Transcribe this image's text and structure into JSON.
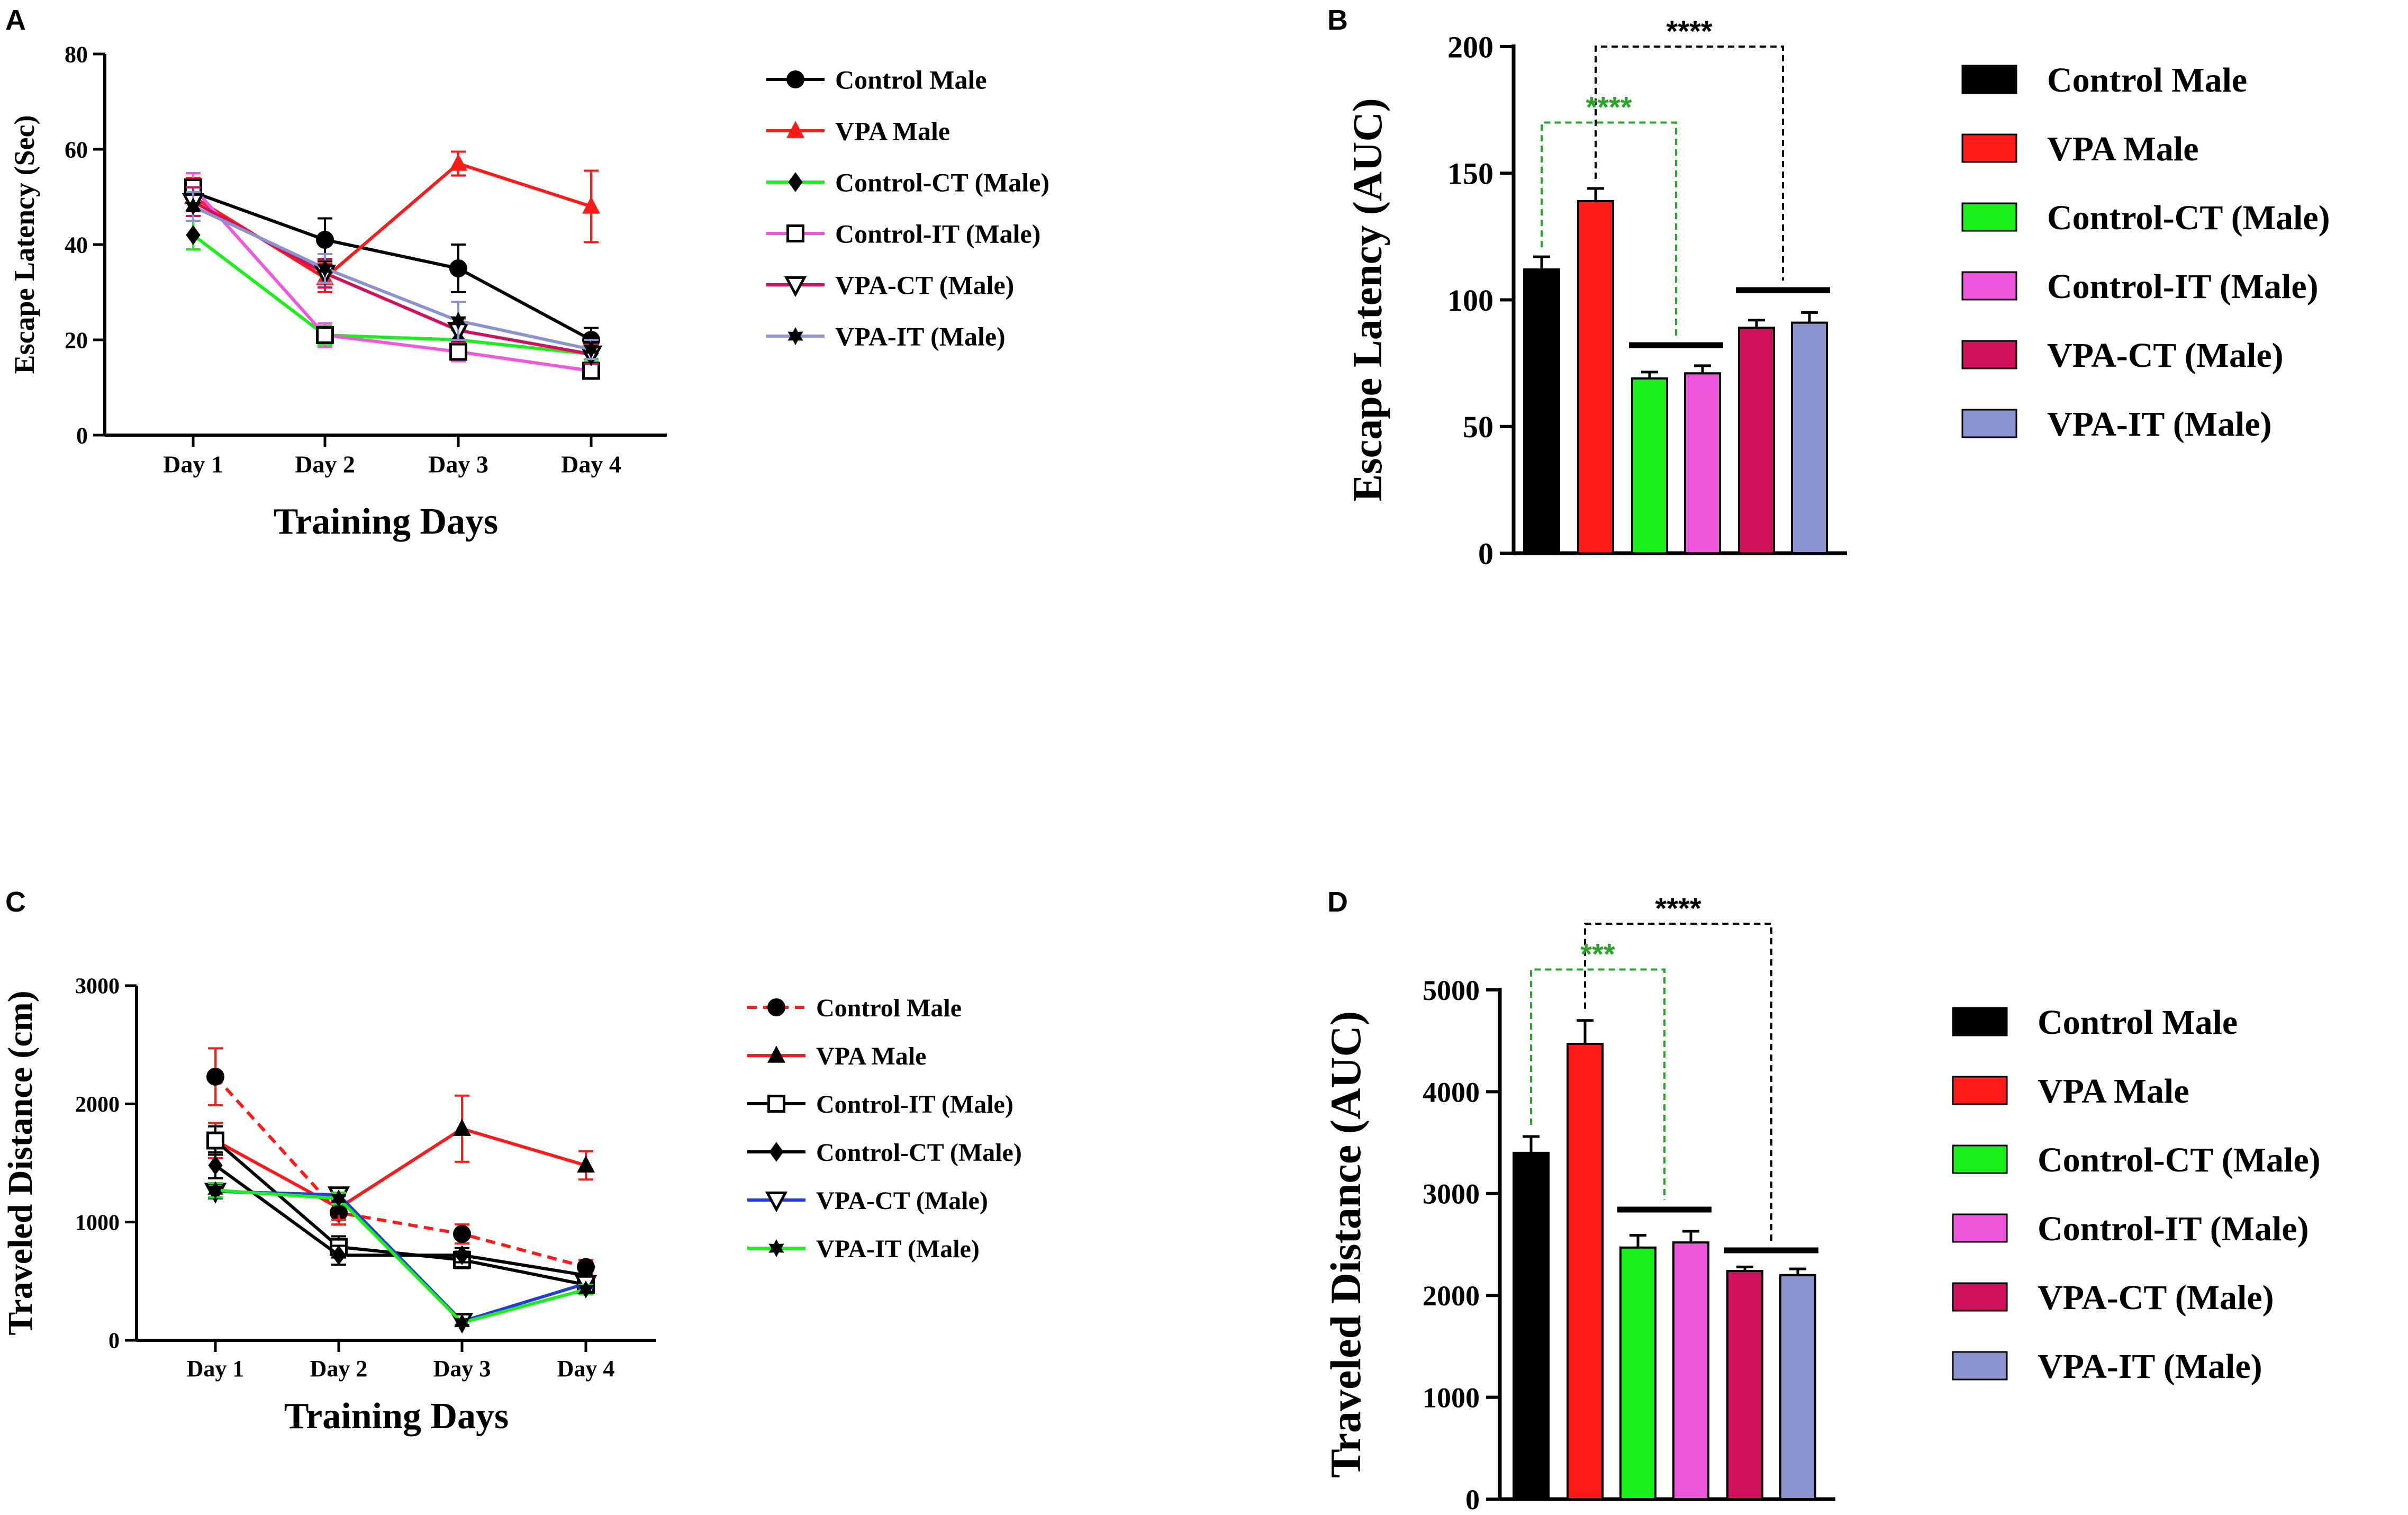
{
  "colors": {
    "black": "#000000",
    "red": "#ff1a1a",
    "green": "#19f019",
    "pink": "#f057dd",
    "crimson": "#d0115e",
    "lavender": "#8b93cf",
    "blue": "#1f3fd6",
    "sig_green": "#2aa52a"
  },
  "chart_data": [
    {
      "panel": "A",
      "type": "line",
      "xlabel": "Training Days",
      "ylabel": "Escape Latency (Sec)",
      "categories": [
        "Day 1",
        "Day 2",
        "Day 3",
        "Day 4"
      ],
      "ylim": [
        0,
        80
      ],
      "yticks": [
        0,
        20,
        40,
        60,
        80
      ],
      "series": [
        {
          "name": "Control Male",
          "color": "black",
          "marker": "circle",
          "values": [
            51,
            41,
            35,
            20
          ],
          "errors": [
            4,
            4.5,
            5,
            2.5
          ]
        },
        {
          "name": "VPA Male",
          "color": "red",
          "marker": "triangle",
          "values": [
            50,
            33,
            57,
            48
          ],
          "errors": [
            4,
            3,
            2.5,
            7.5
          ]
        },
        {
          "name": "Control-CT (Male)",
          "color": "green",
          "marker": "diamond",
          "values": [
            42,
            21,
            20,
            17
          ],
          "errors": [
            3,
            2,
            2,
            1.5
          ]
        },
        {
          "name": "Control-IT (Male)",
          "color": "pink",
          "marker": "square-open",
          "values": [
            52,
            21,
            17.5,
            13.5
          ],
          "errors": [
            3,
            2.5,
            2,
            1.5
          ]
        },
        {
          "name": "VPA-CT (Male)",
          "color": "crimson",
          "marker": "triangle-down-open",
          "values": [
            49,
            34,
            22,
            17
          ],
          "errors": [
            3,
            3,
            2.5,
            2
          ]
        },
        {
          "name": "VPA-IT (Male)",
          "color": "lavender",
          "marker": "star",
          "values": [
            48,
            35,
            24,
            18
          ],
          "errors": [
            3,
            3,
            4,
            2
          ]
        }
      ]
    },
    {
      "panel": "B",
      "type": "bar",
      "ylabel": "Escape Latency (AUC)",
      "categories": [
        "Control Male",
        "VPA Male",
        "Control-CT (Male)",
        "Control-IT (Male)",
        "VPA-CT (Male)",
        "VPA-IT (Male)"
      ],
      "colors": [
        "black",
        "red",
        "green",
        "pink",
        "crimson",
        "lavender"
      ],
      "values": [
        112,
        139,
        69,
        71,
        89,
        91
      ],
      "errors": [
        5,
        5,
        2.5,
        3,
        3,
        4
      ],
      "ylim": [
        0,
        200
      ],
      "yticks": [
        0,
        50,
        100,
        150,
        200
      ],
      "annotations": [
        {
          "text": "****",
          "color": "black",
          "from_bar": 1,
          "to_group": [
            4,
            5
          ],
          "y": 200
        },
        {
          "text": "****",
          "color": "sig_green",
          "from_bar": 0,
          "to_group": [
            2,
            3
          ],
          "y": 170
        }
      ]
    },
    {
      "panel": "C",
      "type": "line",
      "xlabel": "Training Days",
      "ylabel": "Traveled Distance (cm)",
      "categories": [
        "Day 1",
        "Day 2",
        "Day 3",
        "Day 4"
      ],
      "ylim": [
        0,
        3000
      ],
      "yticks": [
        0,
        1000,
        2000,
        3000
      ],
      "series": [
        {
          "name": "Control Male",
          "color": "red",
          "line": "dashed",
          "marker": "circle-black",
          "values": [
            2230,
            1080,
            900,
            620
          ],
          "errors": [
            240,
            100,
            80,
            60
          ]
        },
        {
          "name": "VPA Male",
          "color": "red",
          "marker": "triangle-black",
          "values": [
            1690,
            1120,
            1790,
            1480
          ],
          "errors": [
            150,
            100,
            280,
            120
          ]
        },
        {
          "name": "Control-IT (Male)",
          "color": "black",
          "marker": "square-open",
          "values": [
            1690,
            790,
            680,
            470
          ],
          "errors": [
            120,
            90,
            70,
            50
          ]
        },
        {
          "name": "Control-CT (Male)",
          "color": "black",
          "marker": "diamond",
          "values": [
            1480,
            720,
            720,
            550
          ],
          "errors": [
            110,
            80,
            60,
            60
          ]
        },
        {
          "name": "VPA-CT (Male)",
          "color": "blue",
          "marker": "triangle-down-open",
          "values": [
            1260,
            1230,
            160,
            480
          ],
          "errors": [
            60,
            50,
            30,
            40
          ]
        },
        {
          "name": "VPA-IT (Male)",
          "color": "green",
          "marker": "star",
          "values": [
            1270,
            1200,
            150,
            430
          ],
          "errors": [
            60,
            50,
            30,
            40
          ]
        }
      ]
    },
    {
      "panel": "D",
      "type": "bar",
      "ylabel": "Traveled Distance (AUC)",
      "categories": [
        "Control Male",
        "VPA Male",
        "Control-CT (Male)",
        "Control-IT (Male)",
        "VPA-CT (Male)",
        "VPA-IT (Male)"
      ],
      "colors": [
        "black",
        "red",
        "green",
        "pink",
        "crimson",
        "lavender"
      ],
      "values": [
        3400,
        4470,
        2470,
        2520,
        2240,
        2200
      ],
      "errors": [
        160,
        230,
        120,
        110,
        40,
        60
      ],
      "ylim": [
        0,
        5000
      ],
      "yticks": [
        0,
        1000,
        2000,
        3000,
        4000,
        5000
      ],
      "annotations": [
        {
          "text": "****",
          "color": "black",
          "from_bar": 1,
          "to_group": [
            4,
            5
          ],
          "y": 5650
        },
        {
          "text": "***",
          "color": "sig_green",
          "from_bar": 0,
          "to_group": [
            2,
            3
          ],
          "y": 5200
        }
      ]
    }
  ]
}
